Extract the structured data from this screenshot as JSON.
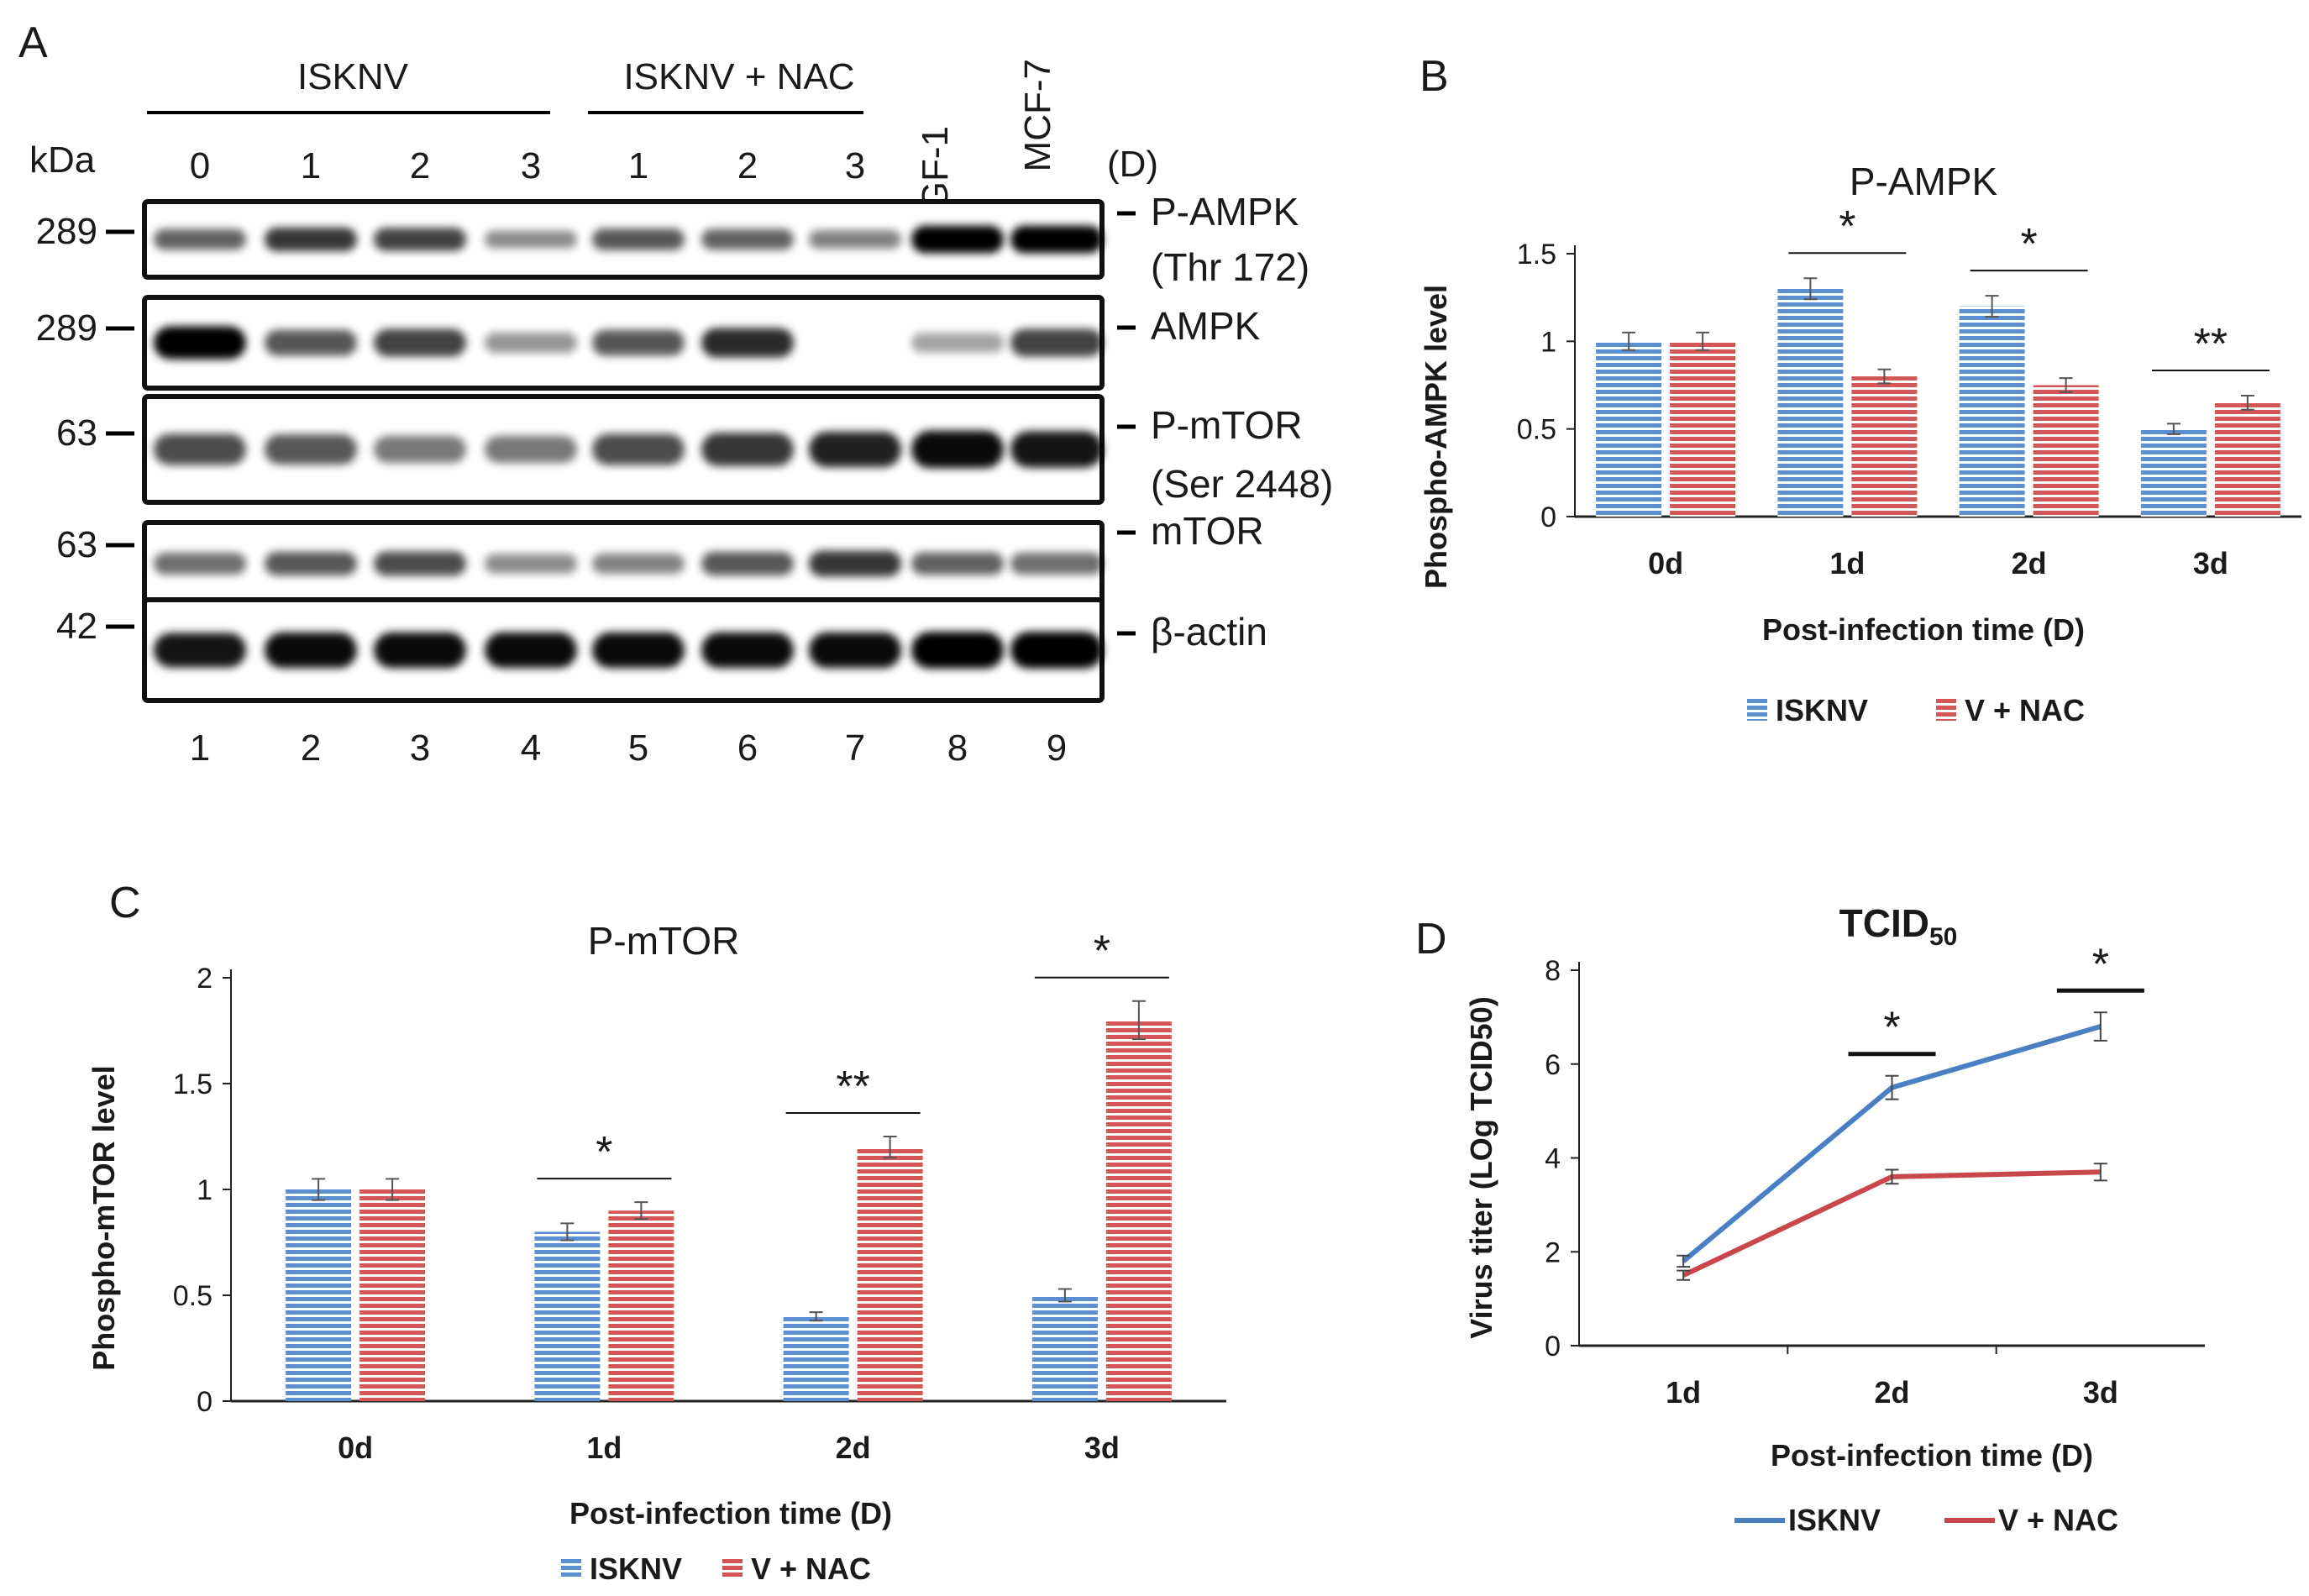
{
  "figure_panels": [
    {
      "label": "A"
    },
    {
      "label": "B"
    },
    {
      "label": "C"
    },
    {
      "label": "D"
    }
  ],
  "blot": {
    "group1": "ISKNV",
    "group2": "ISKNV + NAC",
    "kda_label": "kDa",
    "day_unit": "(D)",
    "day_labels": [
      "0",
      "1",
      "2",
      "3",
      "1",
      "2",
      "3"
    ],
    "cell_lines": [
      "GF-1",
      "MCF-7"
    ],
    "lane_numbers": [
      "1",
      "2",
      "3",
      "4",
      "5",
      "6",
      "7",
      "8",
      "9"
    ],
    "rows": [
      {
        "kda": "289",
        "label": "P-AMPK",
        "sublabel": "(Thr 172)",
        "intensity": [
          0.55,
          0.75,
          0.7,
          0.35,
          0.6,
          0.55,
          0.4,
          1.0,
          1.0
        ]
      },
      {
        "kda": "289",
        "label": "AMPK",
        "sublabel": "",
        "intensity": [
          1.0,
          0.6,
          0.7,
          0.3,
          0.6,
          0.8,
          0.0,
          0.25,
          0.7
        ]
      },
      {
        "kda": "63",
        "label": "P-mTOR",
        "sublabel": "(Ser 2448)",
        "intensity": [
          0.65,
          0.6,
          0.45,
          0.45,
          0.65,
          0.75,
          0.85,
          0.95,
          0.9
        ]
      },
      {
        "kda": "63",
        "label": "mTOR",
        "sublabel": "",
        "intensity": [
          0.5,
          0.6,
          0.65,
          0.35,
          0.4,
          0.6,
          0.75,
          0.55,
          0.5
        ]
      },
      {
        "kda": "42",
        "label": "β-actin",
        "sublabel": "",
        "intensity": [
          0.9,
          0.95,
          0.95,
          0.95,
          0.95,
          0.95,
          0.95,
          1.0,
          1.0
        ]
      }
    ]
  },
  "chart_data": [
    {
      "panel": "B",
      "type": "bar",
      "title": "P-AMPK",
      "xlabel": "Post-infection time (D)",
      "ylabel": "Phospho-AMPK level",
      "categories": [
        "0d",
        "1d",
        "2d",
        "3d"
      ],
      "ylim": [
        0,
        1.5
      ],
      "yticks": [
        "0",
        "0.5",
        "1",
        "1.5"
      ],
      "series": [
        {
          "name": "ISKNV",
          "values": [
            1.0,
            1.3,
            1.2,
            0.5
          ],
          "errors": [
            0.05,
            0.06,
            0.06,
            0.03
          ],
          "color": "#5b8fd1"
        },
        {
          "name": "V + NAC",
          "values": [
            1.0,
            0.8,
            0.75,
            0.65
          ],
          "errors": [
            0.05,
            0.04,
            0.04,
            0.04
          ],
          "color": "#d45656"
        }
      ],
      "significance": [
        "",
        "*",
        "*",
        "**"
      ],
      "legend_position": "bottom"
    },
    {
      "panel": "C",
      "type": "bar",
      "title": "P-mTOR",
      "xlabel": "Post-infection time (D)",
      "ylabel": "Phospho-mTOR level",
      "categories": [
        "0d",
        "1d",
        "2d",
        "3d"
      ],
      "ylim": [
        0,
        2
      ],
      "yticks": [
        "0",
        "0.5",
        "1",
        "1.5",
        "2"
      ],
      "series": [
        {
          "name": "ISKNV",
          "values": [
            1.0,
            0.8,
            0.4,
            0.5
          ],
          "errors": [
            0.05,
            0.04,
            0.02,
            0.03
          ],
          "color": "#5b8fd1"
        },
        {
          "name": "V + NAC",
          "values": [
            1.0,
            0.9,
            1.2,
            1.8
          ],
          "errors": [
            0.05,
            0.04,
            0.05,
            0.09
          ],
          "color": "#d45656"
        }
      ],
      "significance": [
        "",
        "*",
        "**",
        "*"
      ],
      "legend_position": "bottom"
    },
    {
      "panel": "D",
      "type": "line",
      "title": "TCID",
      "title_sub": "50",
      "xlabel": "Post-infection time (D)",
      "ylabel": "Virus titer (LOg TCID50)",
      "categories": [
        "1d",
        "2d",
        "3d"
      ],
      "ylim": [
        0,
        8
      ],
      "yticks": [
        "0",
        "2",
        "4",
        "6",
        "8"
      ],
      "series": [
        {
          "name": "ISKNV",
          "values": [
            1.8,
            5.5,
            6.8
          ],
          "errors": [
            0.12,
            0.25,
            0.3
          ],
          "color": "#4a7fc4"
        },
        {
          "name": "V + NAC",
          "values": [
            1.5,
            3.6,
            3.7
          ],
          "errors": [
            0.1,
            0.15,
            0.18
          ],
          "color": "#c9474a"
        }
      ],
      "significance": [
        "",
        "*",
        "*"
      ],
      "legend_position": "bottom"
    }
  ]
}
